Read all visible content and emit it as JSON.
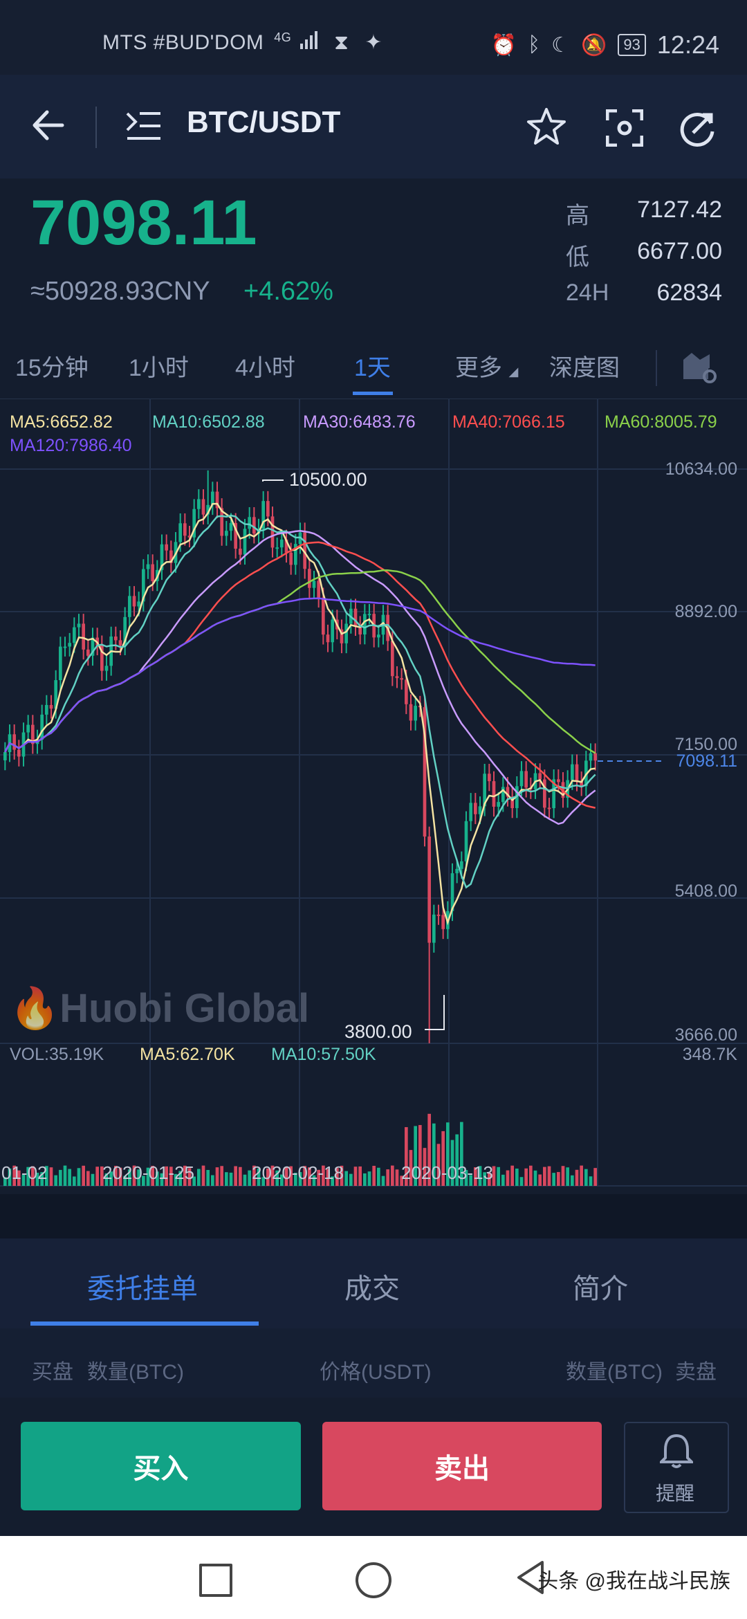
{
  "status_bar": {
    "carrier": "MTS #BUD'DOM",
    "network": "4G",
    "battery": "93",
    "time": "12:24"
  },
  "header": {
    "pair": "BTC/USDT",
    "icons": [
      "back-arrow-icon",
      "menu-list-icon",
      "star-icon",
      "scan-icon",
      "refresh-icon"
    ]
  },
  "ticker": {
    "last_price": "7098.11",
    "cny_value": "≈50928.93CNY",
    "change_pct": "+4.62%",
    "high_label": "高",
    "high": "7127.42",
    "low_label": "低",
    "low": "6677.00",
    "vol_label": "24H",
    "vol": "62834"
  },
  "intervals": {
    "items": [
      "15分钟",
      "1小时",
      "4小时",
      "1天",
      "更多",
      "深度图"
    ],
    "active_index": 3
  },
  "indicators": {
    "ma5": "MA5:6652.82",
    "ma10": "MA10:6502.88",
    "ma30": "MA30:6483.76",
    "ma40": "MA40:7066.15",
    "ma60": "MA60:8005.79",
    "ma120": "MA120:7986.40"
  },
  "price_axis": {
    "labels": [
      "10634.00",
      "8892.00",
      "7150.00",
      "5408.00",
      "3666.00"
    ],
    "current_marker": "7098.11",
    "high_marker": "10500.00",
    "low_marker": "3800.00"
  },
  "watermark": "Huobi Global",
  "volume": {
    "vol": "VOL:35.19K",
    "ma5": "MA5:62.70K",
    "ma10": "MA10:57.50K",
    "max": "348.7K"
  },
  "date_axis": [
    "01-02",
    "2020-01-25",
    "2020-02-18",
    "2020-03-13"
  ],
  "colors": {
    "up": "#17b28c",
    "down": "#d8485f",
    "ma5": "#f4e3a2",
    "ma10": "#62d1c4",
    "ma30": "#c99bff",
    "ma40": "#ff4f4f",
    "ma60": "#8bd14a",
    "ma120": "#7e52ff",
    "accent": "#3f7fe8"
  },
  "bottom_tabs": {
    "items": [
      "委托挂单",
      "成交",
      "简介"
    ],
    "active_index": 0
  },
  "orderbook": {
    "buy": "买盘",
    "qty_left": "数量(BTC)",
    "price": "价格(USDT)",
    "qty_right": "数量(BTC)",
    "sell": "卖盘"
  },
  "actions": {
    "buy": "买入",
    "sell": "卖出",
    "alert": "提醒"
  },
  "credit": "头条 @我在战斗民族",
  "chart_data": {
    "type": "candlestick",
    "title": "",
    "interval": "1天",
    "y_range": [
      3666,
      10634
    ],
    "highest": 10500,
    "lowest": 3800,
    "last": 7098.11,
    "x_ticks": [
      "01-02",
      "2020-01-25",
      "2020-02-18",
      "2020-03-13"
    ]
  }
}
